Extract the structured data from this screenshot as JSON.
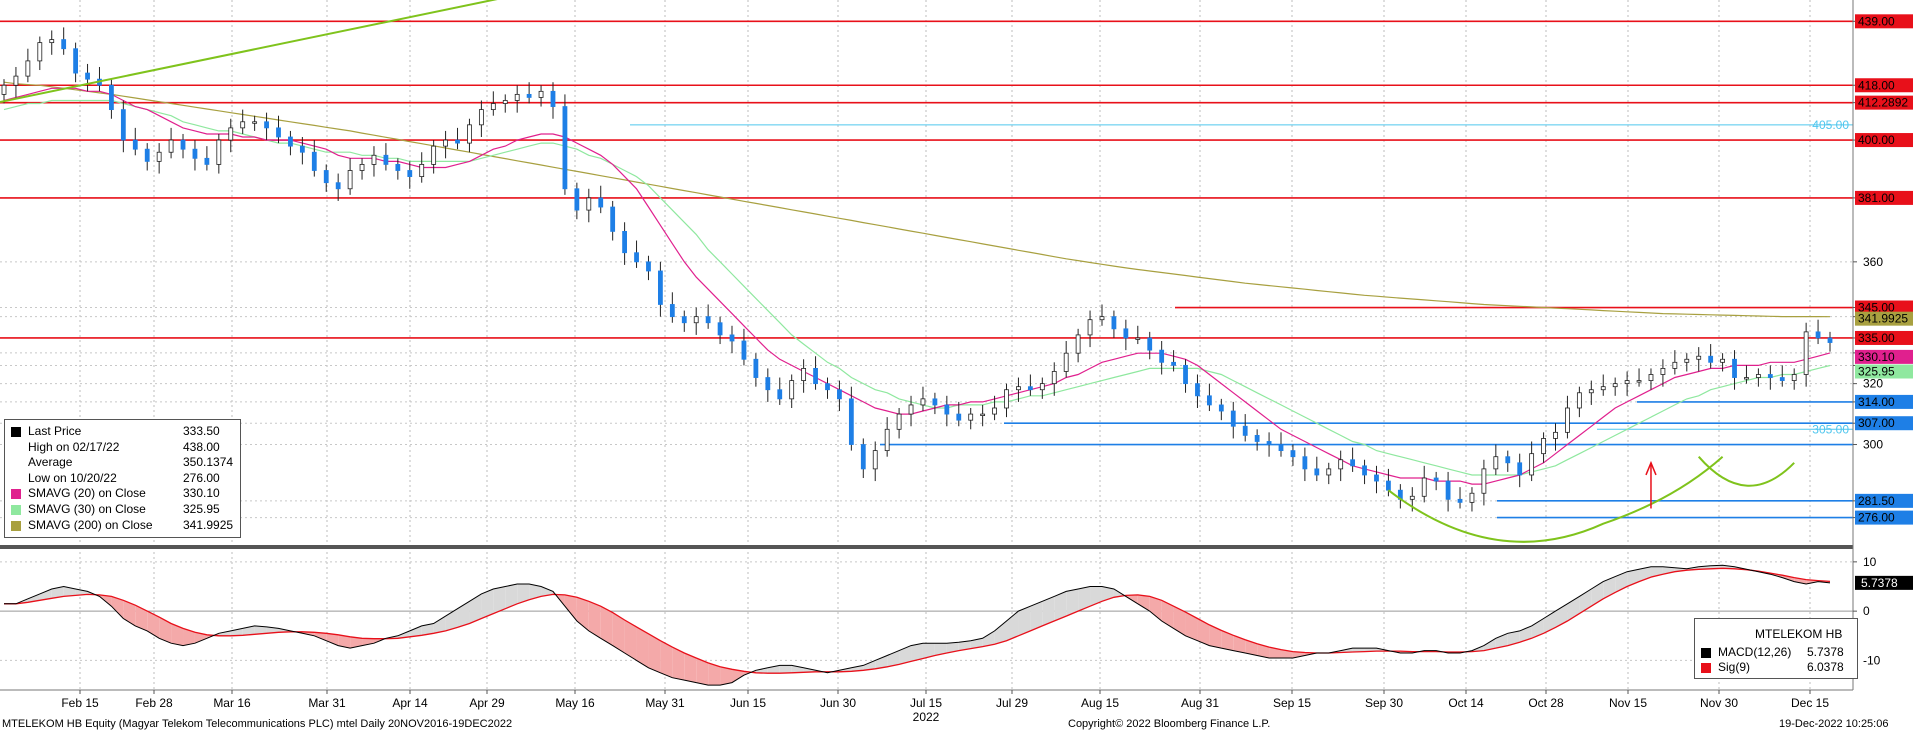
{
  "footer": {
    "left": "MTELEKOM HB Equity (Magyar Telekom Telecommunications PLC) mtel  Daily 20NOV2016-19DEC2022",
    "center": "Copyright© 2022 Bloomberg Finance L.P.",
    "right": "19-Dec-2022 10:25:06"
  },
  "colors": {
    "up_candle": "#ffffff",
    "down_candle": "#1e7fe6",
    "sma20": "#e0208e",
    "sma30": "#8fe89f",
    "sma200": "#a8a040",
    "level_red": "#e8101a",
    "level_blue": "#1e7fe6",
    "trend_green": "#7fc31c",
    "macd": "#000000",
    "signal": "#e8101a"
  },
  "legend_price": {
    "rows": [
      {
        "label": "Last Price",
        "value": "333.50",
        "swatch": "#000000"
      },
      {
        "label": "High on 02/17/22",
        "value": "438.00",
        "swatch": "none"
      },
      {
        "label": "Average",
        "value": "350.1374",
        "swatch": "none"
      },
      {
        "label": "Low on 10/20/22",
        "value": "276.00",
        "swatch": "none"
      },
      {
        "label": "SMAVG (20)  on Close",
        "value": "330.10",
        "swatch": "#e0208e"
      },
      {
        "label": "SMAVG (30)  on Close",
        "value": "325.95",
        "swatch": "#8fe89f"
      },
      {
        "label": "SMAVG (200)  on Close",
        "value": "341.9925",
        "swatch": "#a8a040"
      }
    ]
  },
  "legend_macd": {
    "title": "MTELEKOM HB",
    "rows": [
      {
        "label": "MACD(12,26)",
        "value": "5.7378",
        "swatch": "#000000"
      },
      {
        "label": "Sig(9)",
        "value": "6.0378",
        "swatch": "#e8101a"
      }
    ]
  },
  "chart_data": [
    {
      "type": "candlestick",
      "title": "",
      "ylim": [
        267,
        446
      ],
      "y_ticks": [
        {
          "value": 439,
          "label": "439.00",
          "style": "red"
        },
        {
          "value": 418,
          "label": "418.00",
          "style": "red"
        },
        {
          "value": 412.2892,
          "label": "412.2892",
          "style": "red"
        },
        {
          "value": 400,
          "label": "400.00",
          "style": "red"
        },
        {
          "value": 381,
          "label": "381.00",
          "style": "red"
        },
        {
          "value": 360,
          "label": "360",
          "style": "plain"
        },
        {
          "value": 345,
          "label": "345.00",
          "style": "red"
        },
        {
          "value": 341.9925,
          "label": "341.9925",
          "style": "olive"
        },
        {
          "value": 335,
          "label": "335.00",
          "style": "red"
        },
        {
          "value": 330.1,
          "label": "330.10",
          "style": "magenta"
        },
        {
          "value": 325.95,
          "label": "325.95",
          "style": "green"
        },
        {
          "value": 320,
          "label": "320",
          "style": "plain"
        },
        {
          "value": 314,
          "label": "314.00",
          "style": "blue"
        },
        {
          "value": 307,
          "label": "307.00",
          "style": "blue"
        },
        {
          "value": 300,
          "label": "300",
          "style": "plain"
        },
        {
          "value": 281.5,
          "label": "281.50",
          "style": "blue"
        },
        {
          "value": 276,
          "label": "276.00",
          "style": "blue"
        }
      ],
      "x_labels": [
        "Feb 15",
        "Feb 28",
        "Mar 16",
        "Mar 31",
        "Apr 14",
        "Apr 29",
        "May 16",
        "May 31",
        "Jun 15",
        "Jun 30",
        "Jul 15",
        "Jul 29",
        "Aug 15",
        "Aug 31",
        "Sep 15",
        "Sep 30",
        "Oct 14",
        "Oct 28",
        "Nov 15",
        "Nov 30",
        "Dec 15"
      ],
      "x_year_label": "2022",
      "horizontal_levels": [
        {
          "value": 439,
          "color": "red",
          "full": true
        },
        {
          "value": 418,
          "color": "red",
          "full": true
        },
        {
          "value": 412.2892,
          "color": "red",
          "full": true
        },
        {
          "value": 400,
          "color": "red",
          "full": true
        },
        {
          "value": 381,
          "color": "red",
          "full": true
        },
        {
          "value": 335,
          "color": "red",
          "full": true
        },
        {
          "value": 345,
          "color": "red",
          "from": "Aug 26"
        },
        {
          "value": 405,
          "color": "lightblue",
          "from": "May 23",
          "label": "405.00"
        },
        {
          "value": 314,
          "color": "blue",
          "from": "Nov 16"
        },
        {
          "value": 307,
          "color": "blue",
          "from": "Jul 26"
        },
        {
          "value": 305,
          "color": "lightblue",
          "from": "Nov 2",
          "label": "305.00"
        },
        {
          "value": 300,
          "color": "blue",
          "from": "Jul 11"
        },
        {
          "value": 281.5,
          "color": "blue",
          "from": "Oct 20"
        },
        {
          "value": 276,
          "color": "blue",
          "from": "Oct 20"
        }
      ],
      "close": [
        418,
        421,
        426,
        432,
        433,
        430,
        422,
        420,
        418,
        410,
        400,
        397,
        393,
        396,
        400,
        397,
        394,
        392,
        400,
        404,
        406,
        406,
        404,
        401,
        398,
        396,
        390,
        386,
        384,
        390,
        392,
        395,
        392,
        390,
        388,
        392,
        398,
        400,
        399,
        405,
        410,
        412,
        413,
        415,
        414,
        416,
        411,
        384,
        377,
        381,
        378,
        370,
        363,
        360,
        357,
        346,
        342,
        340,
        342,
        340,
        336,
        334,
        328,
        322,
        318,
        315,
        321,
        325,
        320,
        318,
        315,
        300,
        292,
        298,
        305,
        310,
        313,
        315,
        313,
        310,
        308,
        310,
        310,
        312,
        318,
        319,
        318,
        320,
        324,
        330,
        336,
        341,
        342,
        338,
        335,
        335,
        331,
        327,
        326,
        320,
        316,
        313,
        311,
        306,
        303,
        301,
        300,
        298,
        296,
        292,
        290,
        292,
        295,
        293,
        290,
        288,
        285,
        282,
        283,
        289,
        288,
        282,
        281,
        284,
        292,
        296,
        294,
        290,
        297,
        302,
        304,
        312,
        317,
        318,
        319,
        320,
        321,
        321,
        323,
        325,
        327,
        328,
        329,
        327,
        328,
        322,
        322,
        323,
        322,
        321,
        323,
        337,
        335,
        333.5
      ],
      "sma20": [
        413,
        414,
        415,
        416,
        417,
        417,
        417,
        416,
        416,
        415,
        413,
        411,
        410,
        408,
        406,
        404,
        403,
        402,
        402,
        402,
        401,
        401,
        400,
        400,
        400,
        399,
        398,
        397,
        395,
        394,
        394,
        394,
        393,
        393,
        392,
        391,
        391,
        391,
        392,
        393,
        395,
        397,
        398,
        400,
        401,
        402,
        402,
        401,
        399,
        397,
        395,
        392,
        388,
        384,
        378,
        372,
        366,
        360,
        355,
        351,
        347,
        343,
        339,
        335,
        331,
        328,
        326,
        324,
        322,
        320,
        318,
        316,
        314,
        312,
        311,
        310,
        310,
        311,
        312,
        313,
        313,
        314,
        314,
        315,
        316,
        317,
        318,
        319,
        320,
        322,
        323,
        325,
        327,
        328,
        329,
        330,
        330,
        330,
        329,
        328,
        326,
        323,
        320,
        317,
        314,
        311,
        308,
        305,
        303,
        301,
        299,
        297,
        295,
        293,
        292,
        291,
        290,
        289,
        289,
        289,
        288,
        288,
        288,
        287,
        287,
        288,
        289,
        290,
        292,
        294,
        297,
        300,
        303,
        306,
        309,
        312,
        314,
        316,
        318,
        320,
        322,
        323,
        324,
        325,
        325,
        326,
        326,
        326,
        327,
        327,
        327,
        328,
        329,
        330.1
      ],
      "sma30": [
        410,
        411,
        412,
        412,
        413,
        413,
        413,
        413,
        413,
        413,
        412,
        411,
        410,
        409,
        408,
        406,
        405,
        404,
        403,
        403,
        402,
        401,
        400,
        399,
        399,
        398,
        397,
        396,
        396,
        396,
        395,
        395,
        394,
        394,
        393,
        393,
        393,
        393,
        393,
        393,
        394,
        395,
        396,
        397,
        398,
        399,
        399,
        398,
        397,
        395,
        394,
        392,
        390,
        388,
        385,
        381,
        377,
        373,
        369,
        364,
        360,
        356,
        352,
        348,
        344,
        340,
        336,
        333,
        330,
        327,
        325,
        322,
        320,
        318,
        317,
        315,
        314,
        313,
        312,
        312,
        313,
        313,
        313,
        314,
        314,
        315,
        316,
        316,
        317,
        318,
        319,
        320,
        321,
        322,
        323,
        324,
        325,
        325,
        325,
        325,
        325,
        324,
        323,
        321,
        319,
        317,
        315,
        313,
        311,
        309,
        307,
        305,
        303,
        301,
        300,
        298,
        297,
        296,
        295,
        294,
        293,
        292,
        291,
        290,
        290,
        290,
        290,
        290,
        291,
        292,
        293,
        295,
        297,
        299,
        301,
        303,
        305,
        307,
        309,
        311,
        313,
        315,
        316,
        318,
        319,
        320,
        321,
        322,
        322,
        323,
        323,
        324,
        325,
        325.95
      ],
      "sma200": [
        419,
        418.5,
        418.2,
        418,
        417.5,
        417,
        416.5,
        416,
        415.5,
        415,
        414.4,
        413.8,
        413.2,
        412.6,
        412,
        411.4,
        410.8,
        410.2,
        409.6,
        409,
        408.4,
        407.8,
        407.2,
        406.6,
        406,
        405.4,
        404.8,
        404.2,
        403.6,
        403,
        402.3,
        401.6,
        400.9,
        400.2,
        399.5,
        398.8,
        398.1,
        397.4,
        396.7,
        396,
        395.3,
        394.6,
        393.9,
        393.2,
        392.5,
        391.8,
        391.1,
        390.4,
        389.7,
        389,
        388.3,
        387.6,
        386.9,
        386.2,
        385.5,
        384.8,
        384.1,
        383.4,
        382.7,
        382,
        381.3,
        380.6,
        379.9,
        379.2,
        378.5,
        377.8,
        377.1,
        376.4,
        375.7,
        375,
        374.3,
        373.6,
        372.9,
        372.2,
        371.5,
        370.8,
        370.1,
        369.4,
        368.7,
        368,
        367.3,
        366.6,
        365.9,
        365.2,
        364.5,
        363.8,
        363.1,
        362.4,
        361.7,
        361,
        360.4,
        359.8,
        359.2,
        358.6,
        358,
        357.5,
        357,
        356.5,
        356,
        355.5,
        355,
        354.5,
        354,
        353.5,
        353,
        352.6,
        352.2,
        351.8,
        351.4,
        351,
        350.6,
        350.2,
        349.8,
        349.4,
        349,
        348.7,
        348.4,
        348.1,
        347.8,
        347.5,
        347.2,
        346.9,
        346.6,
        346.3,
        346,
        345.8,
        345.6,
        345.4,
        345.2,
        345,
        344.8,
        344.6,
        344.4,
        344.2,
        344,
        343.8,
        343.6,
        343.4,
        343.2,
        343,
        342.9,
        342.8,
        342.7,
        342.6,
        342.5,
        342.4,
        342.3,
        342.2,
        342.1,
        342,
        342,
        342,
        342,
        341.9925
      ]
    },
    {
      "type": "line",
      "title": "",
      "ylim": [
        -16,
        12
      ],
      "y_ticks": [
        {
          "value": 10,
          "label": "10"
        },
        {
          "value": 0,
          "label": "0"
        },
        {
          "value": -10,
          "label": "-10"
        }
      ],
      "last_value_label": "5.7378",
      "series": [
        {
          "name": "MACD(12,26)",
          "values": [
            1.5,
            1.5,
            2.5,
            3.5,
            4.5,
            5,
            4.5,
            4,
            3,
            1,
            -1.5,
            -3,
            -4,
            -5.5,
            -6.5,
            -7,
            -6.5,
            -5.5,
            -4.5,
            -4,
            -3.5,
            -3,
            -3.2,
            -3.5,
            -4,
            -4.5,
            -5,
            -6,
            -7,
            -7.5,
            -7,
            -6.5,
            -5.5,
            -5,
            -4,
            -3,
            -2.5,
            -1,
            0.5,
            2,
            3.5,
            4.5,
            5,
            5.5,
            5.5,
            5,
            4,
            1,
            -2,
            -4,
            -5.5,
            -7,
            -8.5,
            -10,
            -11.5,
            -12.5,
            -13.5,
            -14,
            -14.5,
            -15,
            -15,
            -14.5,
            -13,
            -12,
            -11.5,
            -11,
            -11,
            -11.5,
            -12,
            -12.5,
            -12,
            -11.5,
            -11,
            -10,
            -9,
            -8,
            -7,
            -6.5,
            -6.5,
            -6.5,
            -6.3,
            -6,
            -5.5,
            -4,
            -2,
            0,
            1,
            2,
            3,
            4,
            4.5,
            5,
            5,
            4.5,
            3,
            1.5,
            0,
            -2,
            -3.5,
            -5,
            -6,
            -7,
            -7.5,
            -8,
            -8.5,
            -9,
            -9.5,
            -9.5,
            -9.5,
            -9,
            -8.5,
            -8.5,
            -8,
            -7.5,
            -7.5,
            -7.5,
            -8,
            -8.5,
            -8.5,
            -8,
            -8,
            -8.5,
            -8.5,
            -8,
            -7,
            -5.5,
            -4.5,
            -4,
            -3,
            -1.5,
            0,
            1.5,
            3,
            4.5,
            6,
            7,
            8,
            8.5,
            9,
            9,
            8.8,
            8.6,
            9,
            9.2,
            9.3,
            9,
            8.5,
            8,
            7.5,
            6.8,
            6,
            5.5,
            6,
            5.7378
          ]
        },
        {
          "name": "Sig(9)",
          "values": [
            1.5,
            1.5,
            1.8,
            2.2,
            2.6,
            3,
            3.2,
            3.4,
            3.3,
            3,
            2.2,
            1.2,
            0,
            -1.2,
            -2.5,
            -3.5,
            -4.3,
            -4.8,
            -5,
            -5,
            -4.9,
            -4.7,
            -4.5,
            -4.3,
            -4.2,
            -4.2,
            -4.3,
            -4.5,
            -4.8,
            -5.2,
            -5.5,
            -5.6,
            -5.6,
            -5.5,
            -5.2,
            -4.9,
            -4.5,
            -4,
            -3.3,
            -2.5,
            -1.5,
            -0.5,
            0.5,
            1.5,
            2.3,
            3,
            3.4,
            3.3,
            2.8,
            2,
            1,
            -0.3,
            -1.8,
            -3.2,
            -4.6,
            -6,
            -7.3,
            -8.5,
            -9.5,
            -10.5,
            -11.3,
            -11.8,
            -12.2,
            -12.5,
            -12.6,
            -12.6,
            -12.5,
            -12.4,
            -12.3,
            -12.3,
            -12.3,
            -12.2,
            -12,
            -11.7,
            -11.3,
            -10.8,
            -10.2,
            -9.6,
            -9,
            -8.5,
            -8,
            -7.6,
            -7.2,
            -6.7,
            -6,
            -5,
            -4,
            -3,
            -2,
            -1,
            0,
            1,
            2,
            2.8,
            3.2,
            3.3,
            3,
            2.2,
            1,
            -0.2,
            -1.5,
            -2.8,
            -3.9,
            -4.9,
            -5.8,
            -6.6,
            -7.3,
            -7.8,
            -8.2,
            -8.4,
            -8.5,
            -8.5,
            -8.4,
            -8.3,
            -8.2,
            -8.1,
            -8.1,
            -8.1,
            -8.2,
            -8.2,
            -8.2,
            -8.3,
            -8.3,
            -8.2,
            -8,
            -7.5,
            -7,
            -6.3,
            -5.5,
            -4.5,
            -3.3,
            -2,
            -0.5,
            1,
            2.5,
            3.8,
            5,
            6,
            6.9,
            7.5,
            8,
            8.3,
            8.5,
            8.6,
            8.7,
            8.6,
            8.4,
            8.1,
            7.7,
            7.3,
            6.8,
            6.4,
            6.2,
            6.0378
          ]
        }
      ]
    }
  ]
}
